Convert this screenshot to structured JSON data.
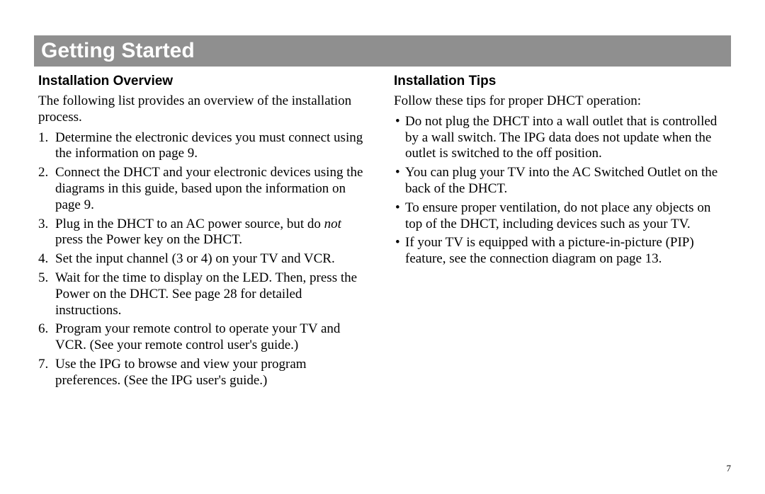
{
  "page": {
    "number": "7",
    "title": "Getting Started",
    "title_bar_color": "#8f8f8f",
    "title_text_color": "#ffffff",
    "body_font": "Palatino",
    "heading_font": "Arial",
    "body_fontsize_pt": 14,
    "heading_fontsize_pt": 14,
    "title_fontsize_pt": 22
  },
  "left": {
    "heading": "Installation Overview",
    "intro": "The following list provides an overview of the installation process.",
    "steps": [
      "Determine the electronic devices you must connect using the information on page 9.",
      "Connect the DHCT and your electronic devices using the diagrams in this guide, based upon the information on page 9.",
      "Plug in the DHCT to an AC power source, but do ",
      " press the Power key on the DHCT.",
      "Set the input channel (3 or 4) on your TV and VCR.",
      "Wait for the time to display on the LED. Then, press the Power on the DHCT. See page 28 for detailed instructions.",
      "Program your remote control to operate your TV and VCR. (See your remote control user's guide.)",
      "Use the IPG to browse and view your program preferences. (See the IPG user's guide.)"
    ],
    "step3_italic": "not"
  },
  "right": {
    "heading": "Installation Tips",
    "intro": "Follow these tips for proper DHCT operation:",
    "bullets": [
      "Do not plug the DHCT into a wall outlet that is controlled by a wall switch. The IPG data does not update when the outlet is switched to the off position.",
      "You can plug your TV into the AC Switched Outlet on the back of the DHCT.",
      "To ensure proper ventilation, do not place any objects on top of the DHCT, including devices such as your TV.",
      "If your TV is equipped with a picture-in-picture (PIP) feature, see the connection diagram on page 13."
    ]
  }
}
